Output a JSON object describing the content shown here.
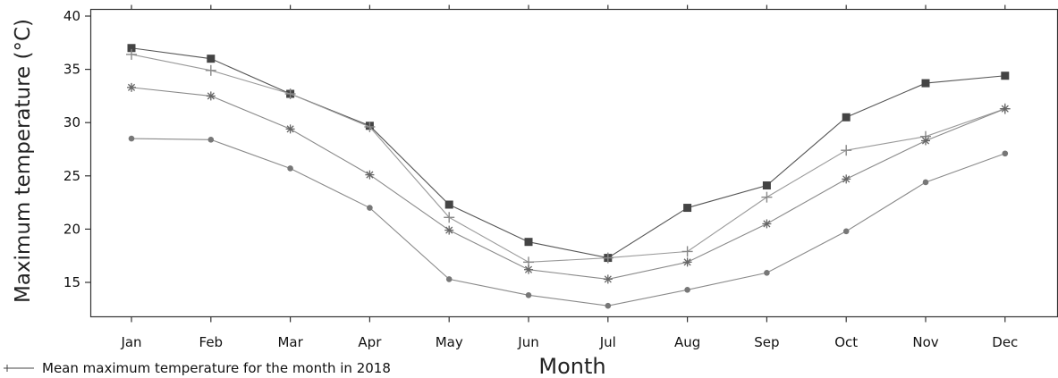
{
  "chart_data": {
    "type": "line",
    "title": "",
    "xlabel": "Month",
    "ylabel": "Maximum temperature (°C)",
    "categories": [
      "Jan",
      "Feb",
      "Mar",
      "Apr",
      "May",
      "Jun",
      "Jul",
      "Aug",
      "Sep",
      "Oct",
      "Nov",
      "Dec"
    ],
    "yticks": [
      15,
      20,
      25,
      30,
      35,
      40
    ],
    "ylim": [
      12,
      40
    ],
    "grid": false,
    "legend_position": "bottom-left",
    "series": [
      {
        "name": "",
        "marker": "square",
        "color": "#555555",
        "values": [
          37.0,
          36.0,
          32.7,
          29.7,
          22.3,
          18.8,
          17.3,
          22.0,
          24.1,
          30.5,
          33.7,
          34.4
        ]
      },
      {
        "name": "Mean maximum temperature for the month in 2018",
        "marker": "plus",
        "color": "#9a9a9a",
        "values": [
          36.4,
          34.9,
          32.7,
          29.6,
          21.1,
          16.9,
          17.3,
          17.9,
          23.0,
          27.4,
          28.7,
          31.3
        ]
      },
      {
        "name": "",
        "marker": "star",
        "color": "#8a8a8a",
        "values": [
          33.3,
          32.5,
          29.4,
          25.1,
          19.9,
          16.2,
          15.3,
          16.9,
          20.5,
          24.7,
          28.3,
          31.3
        ]
      },
      {
        "name": "",
        "marker": "circle",
        "color": "#8a8a8a",
        "values": [
          28.5,
          28.4,
          25.7,
          22.0,
          15.3,
          13.8,
          12.8,
          14.3,
          15.9,
          19.8,
          24.4,
          27.1
        ]
      }
    ]
  }
}
